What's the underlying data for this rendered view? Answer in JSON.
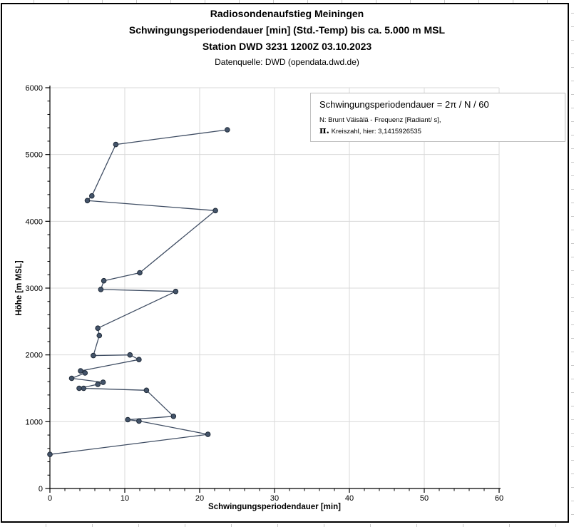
{
  "header": {
    "title_line1": "Radiosondenaufstieg Meiningen",
    "title_line2": "Schwingungsperiodendauer [min] (Std.-Temp) bis ca. 5.000 m MSL",
    "title_line3": "Station DWD 3231 1200Z 03.10.2023",
    "subtitle": "Datenquelle: DWD (opendata.dwd.de)"
  },
  "annotation_box": {
    "formula": "Schwingungsperiodendauer = 2π / N / 60",
    "note_line1": "N: Brunt Väisälä - Frequenz [Radiant/ s],",
    "note_line2_prefix": "π.",
    "note_line2_text": " Kreiszahl, hier: 3,1415926535"
  },
  "chart_data": {
    "type": "line",
    "title": "Radiosondenaufstieg Meiningen – Schwingungsperiodendauer bis ca. 5.000 m MSL",
    "xlabel": "Schwingungsperiodendauer [min]",
    "ylabel": "Höhe [m MSL]",
    "xlim": [
      0,
      60
    ],
    "ylim": [
      0,
      6000
    ],
    "x_major_ticks": [
      0,
      10,
      20,
      30,
      40,
      50,
      60
    ],
    "x_minor_step": 2,
    "y_major_ticks": [
      0,
      1000,
      2000,
      3000,
      4000,
      5000,
      6000
    ],
    "y_minor_step": 200,
    "grid": true,
    "legend": false,
    "marker": "circle",
    "series": [
      {
        "name": "Schwingungsperiodendauer (Std.-Temp)",
        "points": [
          [
            0.0,
            510
          ],
          [
            21.1,
            810
          ],
          [
            11.9,
            1010
          ],
          [
            10.4,
            1030
          ],
          [
            16.5,
            1080
          ],
          [
            12.9,
            1470
          ],
          [
            4.5,
            1500
          ],
          [
            3.9,
            1500
          ],
          [
            6.4,
            1560
          ],
          [
            7.1,
            1590
          ],
          [
            2.9,
            1650
          ],
          [
            4.7,
            1730
          ],
          [
            4.1,
            1760
          ],
          [
            11.9,
            1930
          ],
          [
            10.7,
            2000
          ],
          [
            5.8,
            1990
          ],
          [
            6.6,
            2290
          ],
          [
            6.4,
            2400
          ],
          [
            16.8,
            2950
          ],
          [
            6.8,
            2980
          ],
          [
            7.2,
            3110
          ],
          [
            12.0,
            3230
          ],
          [
            22.1,
            4160
          ],
          [
            5.0,
            4310
          ],
          [
            5.6,
            4380
          ],
          [
            8.8,
            5150
          ],
          [
            23.7,
            5370
          ]
        ]
      }
    ],
    "colors": {
      "line": "#3f4d63",
      "marker_fill": "#44546a",
      "marker_stroke": "#1f2a38",
      "grid": "#d9d9d9",
      "axis": "#000000",
      "text": "#000000"
    }
  }
}
